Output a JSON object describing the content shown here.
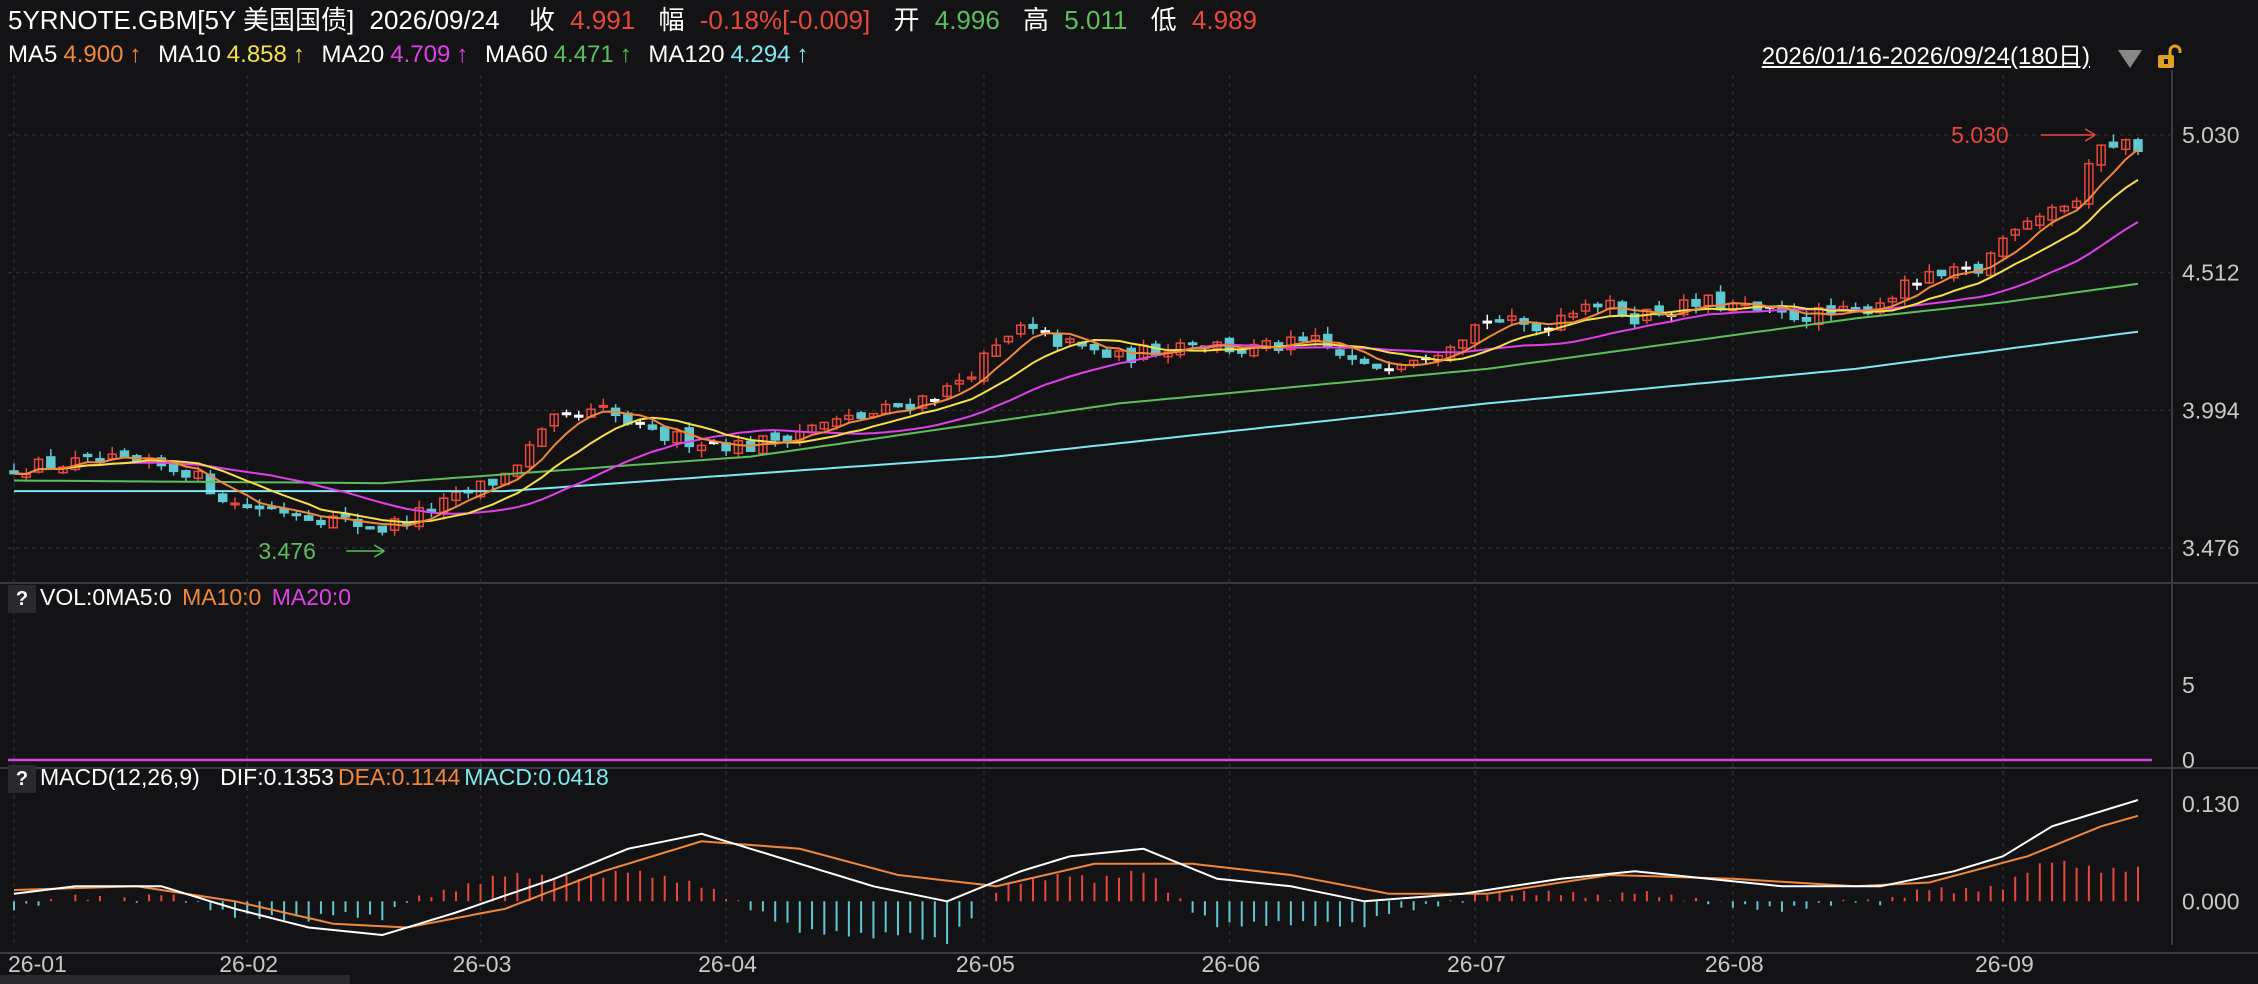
{
  "header": {
    "symbol": "5YRNOTE.GBM[5Y 美国国债]",
    "date": "2026/09/24",
    "close_label": "收",
    "close_value": "4.991",
    "change_label": "幅",
    "change_value": "-0.18%[-0.009]",
    "open_label": "开",
    "open_value": "4.996",
    "high_label": "高",
    "high_value": "5.011",
    "low_label": "低",
    "low_value": "4.989"
  },
  "ma_legend": [
    {
      "label": "MA5",
      "value": "4.900",
      "arrow": "↑",
      "color": "#f0883a"
    },
    {
      "label": "MA10",
      "value": "4.858",
      "arrow": "↑",
      "color": "#f5e04a"
    },
    {
      "label": "MA20",
      "value": "4.709",
      "arrow": "↑",
      "color": "#e040e8"
    },
    {
      "label": "MA60",
      "value": "4.471",
      "arrow": "↑",
      "color": "#5cbf5c"
    },
    {
      "label": "MA120",
      "value": "4.294",
      "arrow": "↑",
      "color": "#7fe8f0"
    }
  ],
  "range_label": "2026/01/16-2026/09/24(180日)",
  "vol_panel": {
    "title": "VOL:0MA5:0",
    "ma10": "MA10:0",
    "ma20": "MA20:0",
    "y_ticks": [
      "5",
      "0"
    ]
  },
  "macd_panel": {
    "title": "MACD(12,26,9)",
    "dif": "DIF:0.1353",
    "dea": "DEA:0.1144",
    "macd": "MACD:0.0418",
    "y_ticks": [
      "0.130",
      "0.000"
    ]
  },
  "colors": {
    "up": "#e8483c",
    "down": "#5fc8d0",
    "doji": "#ffffff",
    "ma5": "#f0883a",
    "ma10": "#f5e04a",
    "ma20": "#e040e8",
    "ma60": "#5cbf5c",
    "ma120": "#7fe8f0",
    "dif": "#ffffff",
    "dea": "#f0883a",
    "vol_line": "#e040e8"
  },
  "chart_data": {
    "type": "candlestick",
    "x_ticks": [
      "26-01",
      "26-02",
      "26-03",
      "26-04",
      "26-05",
      "26-06",
      "26-07",
      "26-08",
      "26-09"
    ],
    "x_tick_days": [
      0,
      19,
      38,
      58,
      79,
      99,
      119,
      140,
      162
    ],
    "y_ticks": [
      "5.030",
      "4.512",
      "3.994",
      "3.476"
    ],
    "ylim": [
      3.476,
      5.03
    ],
    "annotations": {
      "max": "5.030",
      "max_day": 170,
      "min": "3.476",
      "min_day": 30
    },
    "trend_anchors": [
      [
        0,
        3.78
      ],
      [
        8,
        3.8
      ],
      [
        14,
        3.77
      ],
      [
        18,
        3.64
      ],
      [
        22,
        3.62
      ],
      [
        30,
        3.55
      ],
      [
        35,
        3.64
      ],
      [
        40,
        3.75
      ],
      [
        44,
        3.95
      ],
      [
        48,
        3.99
      ],
      [
        52,
        3.9
      ],
      [
        56,
        3.88
      ],
      [
        60,
        3.86
      ],
      [
        64,
        3.92
      ],
      [
        70,
        3.98
      ],
      [
        76,
        4.07
      ],
      [
        82,
        4.3
      ],
      [
        86,
        4.24
      ],
      [
        90,
        4.19
      ],
      [
        96,
        4.26
      ],
      [
        100,
        4.22
      ],
      [
        106,
        4.25
      ],
      [
        110,
        4.15
      ],
      [
        116,
        4.23
      ],
      [
        120,
        4.34
      ],
      [
        124,
        4.3
      ],
      [
        128,
        4.41
      ],
      [
        132,
        4.35
      ],
      [
        138,
        4.4
      ],
      [
        144,
        4.35
      ],
      [
        150,
        4.36
      ],
      [
        155,
        4.48
      ],
      [
        160,
        4.52
      ],
      [
        163,
        4.7
      ],
      [
        166,
        4.76
      ],
      [
        168,
        4.78
      ],
      [
        170,
        5.01
      ],
      [
        173,
        4.99
      ]
    ],
    "ma60_anchors": [
      [
        0,
        3.73
      ],
      [
        30,
        3.72
      ],
      [
        60,
        3.82
      ],
      [
        90,
        4.02
      ],
      [
        120,
        4.15
      ],
      [
        150,
        4.34
      ],
      [
        162,
        4.4
      ],
      [
        173,
        4.47
      ]
    ],
    "ma120_anchors": [
      [
        0,
        3.69
      ],
      [
        40,
        3.69
      ],
      [
        80,
        3.82
      ],
      [
        120,
        4.02
      ],
      [
        150,
        4.15
      ],
      [
        173,
        4.29
      ]
    ],
    "macd_ylim": [
      -0.045,
      0.135
    ],
    "dif_anchors": [
      [
        0,
        0.01
      ],
      [
        5,
        0.02
      ],
      [
        12,
        0.02
      ],
      [
        18,
        -0.01
      ],
      [
        24,
        -0.035
      ],
      [
        30,
        -0.045
      ],
      [
        36,
        -0.015
      ],
      [
        44,
        0.03
      ],
      [
        50,
        0.07
      ],
      [
        56,
        0.09
      ],
      [
        62,
        0.06
      ],
      [
        70,
        0.02
      ],
      [
        76,
        0.0
      ],
      [
        82,
        0.04
      ],
      [
        86,
        0.06
      ],
      [
        92,
        0.07
      ],
      [
        98,
        0.03
      ],
      [
        104,
        0.02
      ],
      [
        110,
        0.0
      ],
      [
        118,
        0.01
      ],
      [
        126,
        0.03
      ],
      [
        132,
        0.04
      ],
      [
        138,
        0.03
      ],
      [
        144,
        0.02
      ],
      [
        152,
        0.02
      ],
      [
        158,
        0.04
      ],
      [
        162,
        0.06
      ],
      [
        166,
        0.1
      ],
      [
        170,
        0.12
      ],
      [
        173,
        0.135
      ]
    ],
    "dea_anchors": [
      [
        0,
        0.015
      ],
      [
        10,
        0.02
      ],
      [
        18,
        0.0
      ],
      [
        26,
        -0.03
      ],
      [
        32,
        -0.035
      ],
      [
        40,
        -0.01
      ],
      [
        48,
        0.04
      ],
      [
        56,
        0.08
      ],
      [
        64,
        0.07
      ],
      [
        72,
        0.035
      ],
      [
        80,
        0.02
      ],
      [
        88,
        0.05
      ],
      [
        96,
        0.05
      ],
      [
        104,
        0.035
      ],
      [
        112,
        0.01
      ],
      [
        120,
        0.01
      ],
      [
        130,
        0.035
      ],
      [
        140,
        0.03
      ],
      [
        150,
        0.02
      ],
      [
        156,
        0.025
      ],
      [
        164,
        0.06
      ],
      [
        170,
        0.1
      ],
      [
        173,
        0.114
      ]
    ],
    "vol_ylim": [
      0,
      10
    ]
  }
}
